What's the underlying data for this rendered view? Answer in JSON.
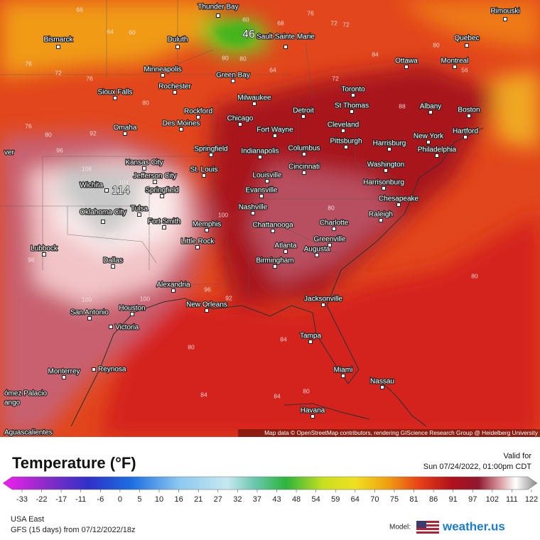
{
  "map": {
    "cities": [
      "Thunder Bay",
      "Rimouski",
      "Bismarck",
      "Duluth",
      "Sault Sainte Marie",
      "Quebec",
      "Minneapolis",
      "Ottawa",
      "Montreal",
      "Green Bay",
      "Rochester",
      "Toronto",
      "Sioux Falls",
      "Milwaukee",
      "St Thomas",
      "Albany",
      "Boston",
      "Rockford",
      "Detroit",
      "Chicago",
      "Des Moines",
      "Omaha",
      "Cleveland",
      "Fort Wayne",
      "New York",
      "Hartford",
      "Harrisburg",
      "Pittsburgh",
      "Springfield",
      "Indianapolis",
      "Columbus",
      "Philadelphia",
      "Kansas City",
      "Cincinnati",
      "Washington",
      "Jefferson City",
      "St. Louis",
      "Louisville",
      "Harrisonburg",
      "Wichita",
      "Springfield",
      "Evansville",
      "Chesapeake",
      "Tulsa",
      "Nashville",
      "Raleigh",
      "Oklahoma City",
      "Fort Smith",
      "Memphis",
      "Chattanooga",
      "Charlotte",
      "Greenville",
      "Little Rock",
      "Lubbock",
      "Atlanta",
      "Augusta",
      "Dallas",
      "Birmingham",
      "Alexandria",
      "Jacksonville",
      "New Orleans",
      "San Antonio",
      "Houston",
      "Victoria",
      "Tampa",
      "Monterrey",
      "Reynosa",
      "Miami",
      "Nassau",
      "ómez Palacio",
      "ango",
      "Havana",
      "Aguascalientes",
      "ver"
    ],
    "contour_labels": [
      68,
      64,
      60,
      72,
      76,
      80,
      76,
      80,
      92,
      96,
      108,
      104,
      108,
      104,
      100,
      96,
      100,
      100,
      96,
      92,
      80,
      84,
      84,
      84,
      80,
      80,
      80,
      56,
      60,
      68,
      76,
      72,
      72,
      80,
      64,
      72,
      84,
      80,
      80,
      88,
      76
    ],
    "max_label": 114,
    "min_label": 46,
    "attribution": "Map data © OpenStreetMap contributors, rendering GIScience Research Group @ Heidelberg University"
  },
  "legend": {
    "title": "Temperature (°F)",
    "scale_ticks": [
      -33,
      -22,
      -17,
      -11,
      -6,
      0,
      5,
      10,
      16,
      21,
      27,
      32,
      37,
      43,
      48,
      54,
      59,
      64,
      70,
      75,
      81,
      86,
      91,
      97,
      102,
      111,
      122
    ],
    "valid_label": "Valid for",
    "valid_time": "Sun 07/24/2022, 01:00pm CDT"
  },
  "footer": {
    "region": "USA East",
    "run": "GFS (15 days) from 07/12/2022/18z",
    "model_label": "Model:",
    "brand": "weather.us"
  }
}
